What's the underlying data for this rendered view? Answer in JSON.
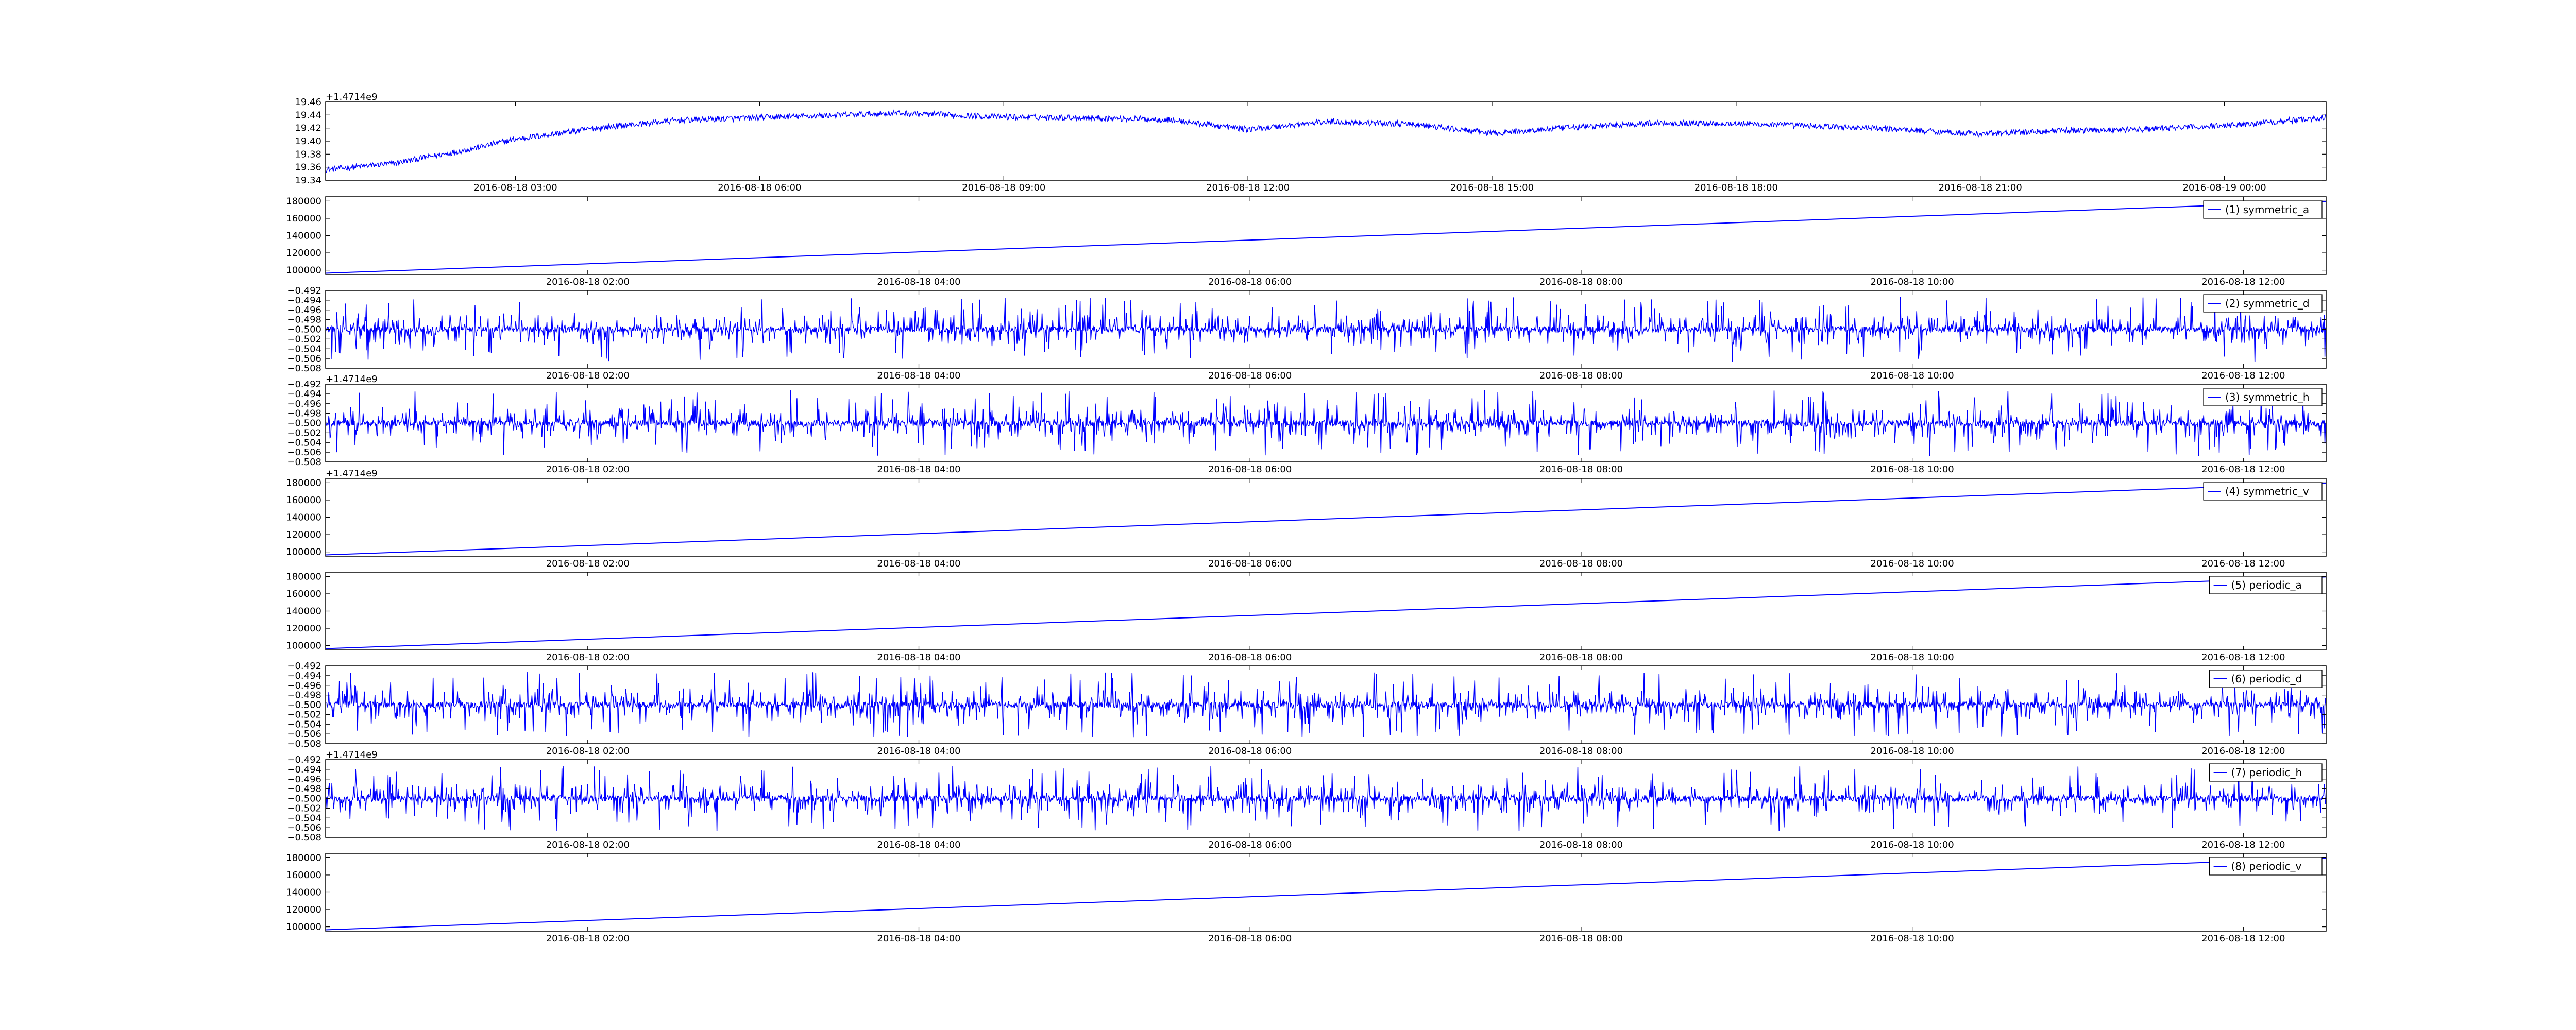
{
  "chart_data": [
    {
      "type": "line",
      "title": "",
      "xlabel": "",
      "ylabel": "",
      "grid": false,
      "legend": "none",
      "color": "#0000ff",
      "signal": "slow-drift-noise",
      "xlim": [
        "2016-08-18 00:40",
        "2016-08-19 01:15"
      ],
      "ylim": [
        19.34,
        19.46
      ],
      "y_ticks": [
        "19.34",
        "19.36",
        "19.38",
        "19.40",
        "19.42",
        "19.44",
        "19.46"
      ],
      "x_ticks": [
        "2016-08-18 03:00",
        "2016-08-18 06:00",
        "2016-08-18 09:00",
        "2016-08-18 12:00",
        "2016-08-18 15:00",
        "2016-08-18 18:00",
        "2016-08-18 21:00",
        "2016-08-19 00:00"
      ],
      "y_offset_text": "+1.4714e9",
      "series": [
        {
          "name": "",
          "x": [
            "2016-08-18 00:40",
            "2016-08-18 01:30",
            "2016-08-18 02:20",
            "2016-08-18 03:00",
            "2016-08-18 04:00",
            "2016-08-18 05:00",
            "2016-08-18 06:00",
            "2016-08-18 07:00",
            "2016-08-18 07:40",
            "2016-08-18 09:00",
            "2016-08-18 10:00",
            "2016-08-18 11:00",
            "2016-08-18 12:00",
            "2016-08-18 13:00",
            "2016-08-18 14:00",
            "2016-08-18 15:00",
            "2016-08-18 16:00",
            "2016-08-18 17:00",
            "2016-08-18 18:00",
            "2016-08-18 19:00",
            "2016-08-18 20:00",
            "2016-08-18 21:00",
            "2016-08-18 22:00",
            "2016-08-18 23:00",
            "2016-08-19 00:00",
            "2016-08-19 01:15"
          ],
          "values": [
            19.356,
            19.366,
            19.385,
            19.403,
            19.42,
            19.432,
            19.436,
            19.44,
            19.443,
            19.437,
            19.436,
            19.433,
            19.418,
            19.43,
            19.426,
            19.412,
            19.421,
            19.428,
            19.427,
            19.423,
            19.418,
            19.411,
            19.416,
            19.418,
            19.424,
            19.436
          ]
        }
      ]
    },
    {
      "type": "line",
      "title": "",
      "xlabel": "",
      "ylabel": "",
      "grid": false,
      "legend": "top-right",
      "color": "#0000ff",
      "signal": "ramp",
      "xlim": [
        "2016-08-18 00:25",
        "2016-08-18 12:30"
      ],
      "ylim": [
        95000,
        185000
      ],
      "y_ticks": [
        "100000",
        "120000",
        "140000",
        "160000",
        "180000"
      ],
      "x_ticks": [
        "2016-08-18 02:00",
        "2016-08-18 04:00",
        "2016-08-18 06:00",
        "2016-08-18 08:00",
        "2016-08-18 10:00",
        "2016-08-18 12:00"
      ],
      "y_offset_text": "",
      "series": [
        {
          "name": "(1) symmetric_a",
          "x": [
            "2016-08-18 00:25",
            "2016-08-18 12:30"
          ],
          "values": [
            96500,
            179500
          ]
        }
      ]
    },
    {
      "type": "line",
      "title": "",
      "xlabel": "",
      "ylabel": "",
      "grid": false,
      "legend": "top-right",
      "color": "#0000ff",
      "signal": "spike-noise",
      "baseline": -0.5,
      "xlim": [
        "2016-08-18 00:25",
        "2016-08-18 12:30"
      ],
      "ylim": [
        -0.508,
        -0.492
      ],
      "y_ticks": [
        "−0.508",
        "−0.506",
        "−0.504",
        "−0.502",
        "−0.500",
        "−0.498",
        "−0.496",
        "−0.494",
        "−0.492"
      ],
      "x_ticks": [
        "2016-08-18 02:00",
        "2016-08-18 04:00",
        "2016-08-18 06:00",
        "2016-08-18 08:00",
        "2016-08-18 10:00",
        "2016-08-18 12:00"
      ],
      "y_offset_text": "",
      "series": [
        {
          "name": "(2) symmetric_d"
        }
      ]
    },
    {
      "type": "line",
      "title": "",
      "xlabel": "",
      "ylabel": "",
      "grid": false,
      "legend": "top-right",
      "color": "#0000ff",
      "signal": "spike-noise",
      "baseline": -0.5,
      "xlim": [
        "2016-08-18 00:25",
        "2016-08-18 12:30"
      ],
      "ylim": [
        -0.508,
        -0.492
      ],
      "y_ticks": [
        "−0.508",
        "−0.506",
        "−0.504",
        "−0.502",
        "−0.500",
        "−0.498",
        "−0.496",
        "−0.494",
        "−0.492"
      ],
      "x_ticks": [
        "2016-08-18 02:00",
        "2016-08-18 04:00",
        "2016-08-18 06:00",
        "2016-08-18 08:00",
        "2016-08-18 10:00",
        "2016-08-18 12:00"
      ],
      "y_offset_text": "+1.4714e9",
      "series": [
        {
          "name": "(3) symmetric_h"
        }
      ]
    },
    {
      "type": "line",
      "title": "",
      "xlabel": "",
      "ylabel": "",
      "grid": false,
      "legend": "top-right",
      "color": "#0000ff",
      "signal": "ramp",
      "xlim": [
        "2016-08-18 00:25",
        "2016-08-18 12:30"
      ],
      "ylim": [
        95000,
        185000
      ],
      "y_ticks": [
        "100000",
        "120000",
        "140000",
        "160000",
        "180000"
      ],
      "x_ticks": [
        "2016-08-18 02:00",
        "2016-08-18 04:00",
        "2016-08-18 06:00",
        "2016-08-18 08:00",
        "2016-08-18 10:00",
        "2016-08-18 12:00"
      ],
      "y_offset_text": "+1.4714e9",
      "series": [
        {
          "name": "(4) symmetric_v",
          "x": [
            "2016-08-18 00:25",
            "2016-08-18 12:30"
          ],
          "values": [
            96500,
            179500
          ]
        }
      ]
    },
    {
      "type": "line",
      "title": "",
      "xlabel": "",
      "ylabel": "",
      "grid": false,
      "legend": "top-right",
      "color": "#0000ff",
      "signal": "ramp",
      "xlim": [
        "2016-08-18 00:25",
        "2016-08-18 12:30"
      ],
      "ylim": [
        95000,
        185000
      ],
      "y_ticks": [
        "100000",
        "120000",
        "140000",
        "160000",
        "180000"
      ],
      "x_ticks": [
        "2016-08-18 02:00",
        "2016-08-18 04:00",
        "2016-08-18 06:00",
        "2016-08-18 08:00",
        "2016-08-18 10:00",
        "2016-08-18 12:00"
      ],
      "y_offset_text": "",
      "series": [
        {
          "name": "(5) periodic_a",
          "x": [
            "2016-08-18 00:25",
            "2016-08-18 12:30"
          ],
          "values": [
            96500,
            179500
          ]
        }
      ]
    },
    {
      "type": "line",
      "title": "",
      "xlabel": "",
      "ylabel": "",
      "grid": false,
      "legend": "top-right",
      "color": "#0000ff",
      "signal": "spike-noise",
      "baseline": -0.5,
      "xlim": [
        "2016-08-18 00:25",
        "2016-08-18 12:30"
      ],
      "ylim": [
        -0.508,
        -0.492
      ],
      "y_ticks": [
        "−0.508",
        "−0.506",
        "−0.504",
        "−0.502",
        "−0.500",
        "−0.498",
        "−0.496",
        "−0.494",
        "−0.492"
      ],
      "x_ticks": [
        "2016-08-18 02:00",
        "2016-08-18 04:00",
        "2016-08-18 06:00",
        "2016-08-18 08:00",
        "2016-08-18 10:00",
        "2016-08-18 12:00"
      ],
      "y_offset_text": "",
      "series": [
        {
          "name": "(6) periodic_d"
        }
      ]
    },
    {
      "type": "line",
      "title": "",
      "xlabel": "",
      "ylabel": "",
      "grid": false,
      "legend": "top-right",
      "color": "#0000ff",
      "signal": "spike-noise",
      "baseline": -0.5,
      "xlim": [
        "2016-08-18 00:25",
        "2016-08-18 12:30"
      ],
      "ylim": [
        -0.508,
        -0.492
      ],
      "y_ticks": [
        "−0.508",
        "−0.506",
        "−0.504",
        "−0.502",
        "−0.500",
        "−0.498",
        "−0.496",
        "−0.494",
        "−0.492"
      ],
      "x_ticks": [
        "2016-08-18 02:00",
        "2016-08-18 04:00",
        "2016-08-18 06:00",
        "2016-08-18 08:00",
        "2016-08-18 10:00",
        "2016-08-18 12:00"
      ],
      "y_offset_text": "+1.4714e9",
      "series": [
        {
          "name": "(7) periodic_h"
        }
      ]
    },
    {
      "type": "line",
      "title": "",
      "xlabel": "",
      "ylabel": "",
      "grid": false,
      "legend": "top-right",
      "color": "#0000ff",
      "signal": "ramp",
      "xlim": [
        "2016-08-18 00:25",
        "2016-08-18 12:30"
      ],
      "ylim": [
        95000,
        185000
      ],
      "y_ticks": [
        "100000",
        "120000",
        "140000",
        "160000",
        "180000"
      ],
      "x_ticks": [
        "2016-08-18 02:00",
        "2016-08-18 04:00",
        "2016-08-18 06:00",
        "2016-08-18 08:00",
        "2016-08-18 10:00",
        "2016-08-18 12:00"
      ],
      "y_offset_text": "",
      "series": [
        {
          "name": "(8) periodic_v",
          "x": [
            "2016-08-18 00:25",
            "2016-08-18 12:30"
          ],
          "values": [
            96500,
            179500
          ]
        }
      ]
    }
  ]
}
